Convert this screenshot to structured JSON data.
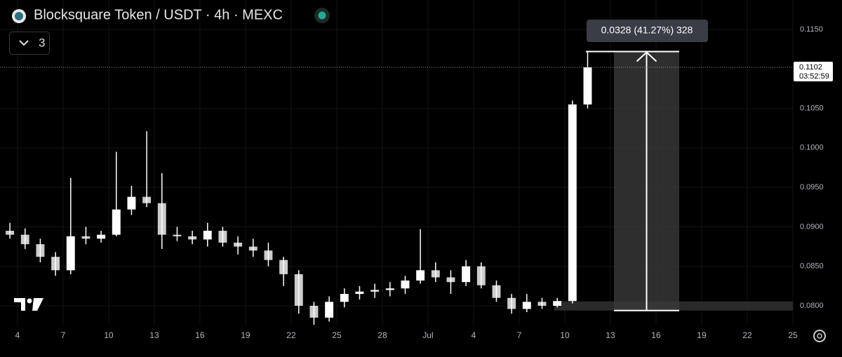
{
  "chart_data": {
    "type": "candlestick",
    "title": "Blocksquare Token / USDT · 4h · MEXC",
    "indicator_count": "3",
    "color": "#ffffff",
    "grid": true,
    "x": [
      3.5,
      4.5,
      5.5,
      6.5,
      7.5,
      8.5,
      9.5,
      10.5,
      11.5,
      12.5,
      13.5,
      14.5,
      15.5,
      16.5,
      17.5,
      18.5,
      19.5,
      20.5,
      21.5,
      22.5,
      23.5,
      24.5,
      25.5,
      26.5,
      27.5,
      28.5,
      29.5,
      30.5,
      31.5,
      32.5,
      33.5,
      34.5,
      35.5,
      36.5,
      37.5,
      38.5,
      39.5,
      40.5,
      41.5
    ],
    "open": [
      0.0895,
      0.089,
      0.0878,
      0.0862,
      0.0845,
      0.0888,
      0.0885,
      0.089,
      0.0922,
      0.0938,
      0.093,
      0.089,
      0.0888,
      0.0884,
      0.0895,
      0.088,
      0.0875,
      0.087,
      0.0858,
      0.084,
      0.08,
      0.0785,
      0.0805,
      0.0815,
      0.0818,
      0.082,
      0.0822,
      0.0832,
      0.0845,
      0.0836,
      0.083,
      0.085,
      0.0826,
      0.081,
      0.0796,
      0.0805,
      0.08,
      0.0806,
      0.1055
    ],
    "high": [
      0.0905,
      0.0898,
      0.0885,
      0.0868,
      0.0962,
      0.09,
      0.0895,
      0.0995,
      0.0952,
      0.1021,
      0.0968,
      0.09,
      0.0895,
      0.0905,
      0.09,
      0.0888,
      0.0885,
      0.088,
      0.0862,
      0.0845,
      0.0805,
      0.0812,
      0.0822,
      0.0825,
      0.0828,
      0.083,
      0.0838,
      0.0897,
      0.0855,
      0.0845,
      0.0858,
      0.0855,
      0.0832,
      0.0815,
      0.0815,
      0.081,
      0.081,
      0.106,
      0.1122
    ],
    "low": [
      0.0885,
      0.0872,
      0.0855,
      0.0838,
      0.084,
      0.0878,
      0.088,
      0.0888,
      0.0915,
      0.0925,
      0.0872,
      0.0882,
      0.0878,
      0.0875,
      0.0875,
      0.0865,
      0.0862,
      0.085,
      0.0825,
      0.079,
      0.077,
      0.078,
      0.0798,
      0.0808,
      0.081,
      0.0812,
      0.0815,
      0.0828,
      0.083,
      0.0815,
      0.0825,
      0.0822,
      0.0805,
      0.079,
      0.0792,
      0.0796,
      0.0798,
      0.0803,
      0.105
    ],
    "close": [
      0.089,
      0.0878,
      0.0862,
      0.0845,
      0.0888,
      0.0885,
      0.089,
      0.0922,
      0.0938,
      0.093,
      0.089,
      0.0888,
      0.0884,
      0.0895,
      0.088,
      0.0875,
      0.087,
      0.0858,
      0.084,
      0.08,
      0.0785,
      0.0805,
      0.0815,
      0.0818,
      0.082,
      0.0822,
      0.0832,
      0.0845,
      0.0836,
      0.083,
      0.085,
      0.0826,
      0.081,
      0.0796,
      0.0805,
      0.08,
      0.0806,
      0.1055,
      0.1102
    ],
    "xlim": [
      2.85,
      55.0
    ],
    "ylim": [
      0.0776,
      0.11873
    ],
    "xticks": [
      4,
      7,
      10,
      13,
      16,
      19,
      22,
      25,
      28,
      {
        "value": 31,
        "label": "Jul"
      },
      {
        "value": 34,
        "label": "4"
      },
      {
        "value": 37,
        "label": "7"
      },
      {
        "value": 40,
        "label": "10"
      },
      {
        "value": 43,
        "label": "13"
      },
      {
        "value": 46,
        "label": "16"
      },
      {
        "value": 49,
        "label": "19"
      },
      {
        "value": 52,
        "label": "22"
      },
      {
        "value": 55,
        "label": "25"
      }
    ],
    "yticks": [
      {
        "value": 0.08,
        "label": "0.0800"
      },
      {
        "value": 0.085,
        "label": "0.0850"
      },
      {
        "value": 0.09,
        "label": "0.0900"
      },
      {
        "value": 0.095,
        "label": "0.0950"
      },
      {
        "value": 0.1,
        "label": "0.1000"
      },
      {
        "value": 0.105,
        "label": "0.1050"
      },
      {
        "value": 0.115,
        "label": "0.1150"
      }
    ],
    "current_price": 0.1102,
    "countdown": "03:52:59",
    "measure": {
      "label": "0.0328 (41.27%) 328",
      "from": 0.0794,
      "to": 0.1122
    }
  }
}
